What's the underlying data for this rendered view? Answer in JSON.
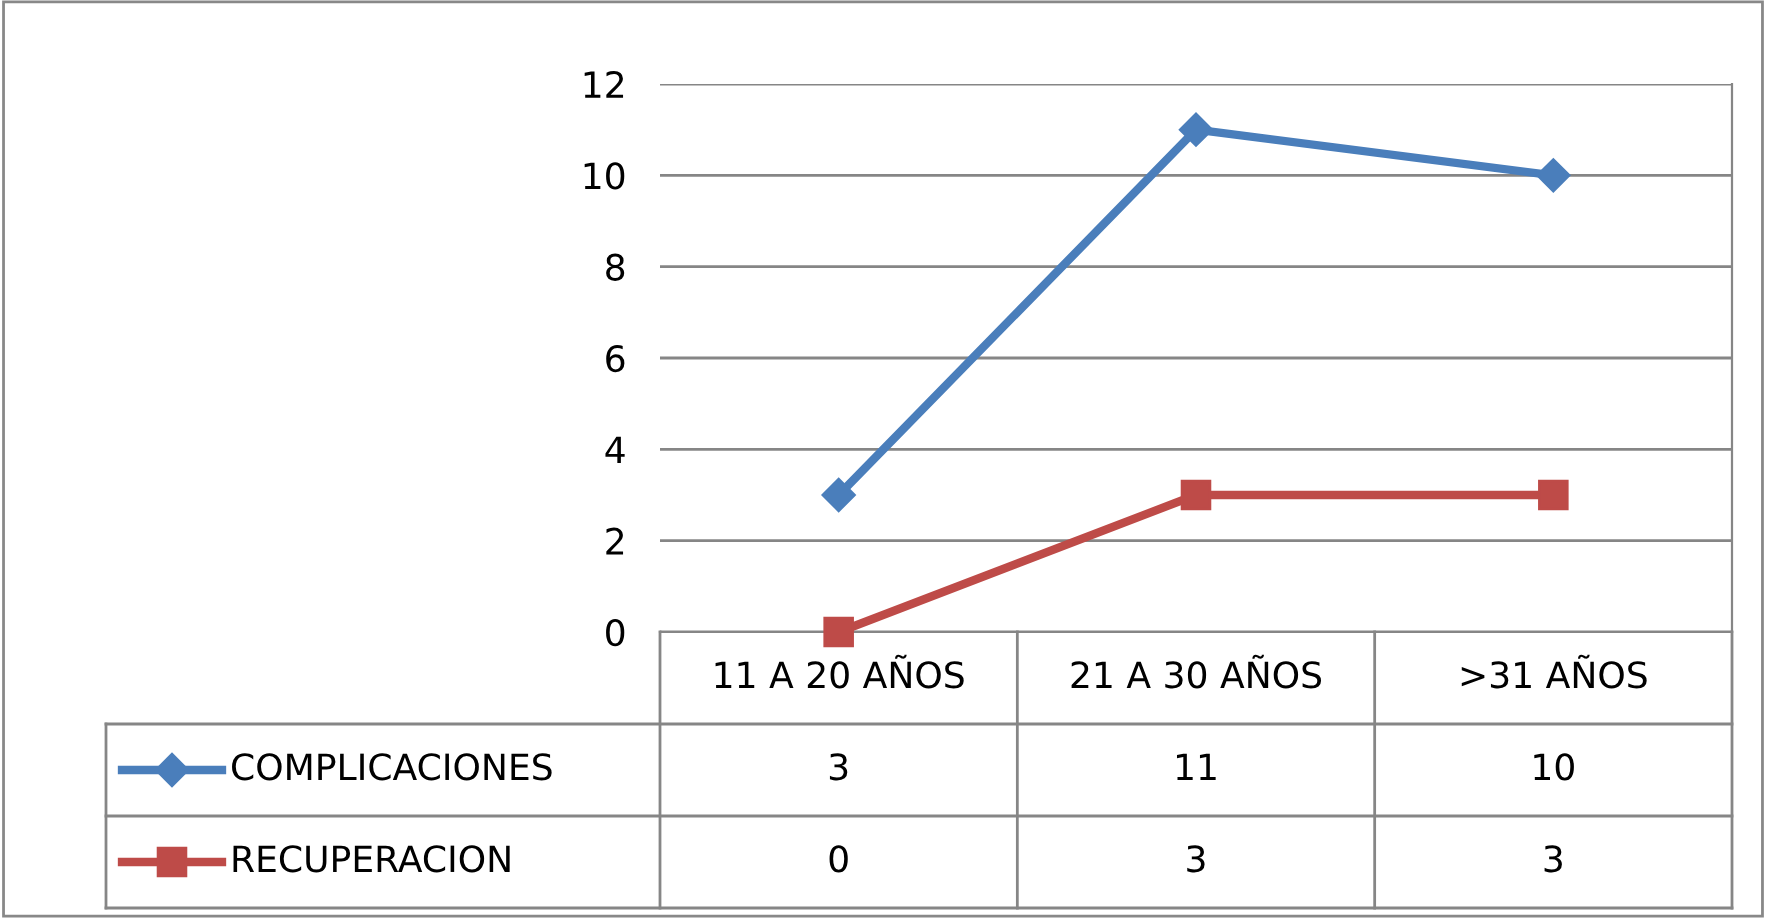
{
  "chart_data": {
    "type": "line",
    "categories": [
      "11 A 20 AÑOS",
      "21 A 30 AÑOS",
      ">31 AÑOS"
    ],
    "series": [
      {
        "name": "COMPLICACIONES",
        "color": "#4a7ebb",
        "values": [
          3,
          11,
          10
        ],
        "marker": "diamond"
      },
      {
        "name": "RECUPERACION",
        "color": "#be4b48",
        "values": [
          0,
          3,
          3
        ],
        "marker": "square"
      }
    ],
    "ylim": [
      0,
      12
    ],
    "yticks": [
      0,
      2,
      4,
      6,
      8,
      10,
      12
    ],
    "grid": "y",
    "legend": "bottom",
    "data_labels": true,
    "line_style": "solid"
  }
}
